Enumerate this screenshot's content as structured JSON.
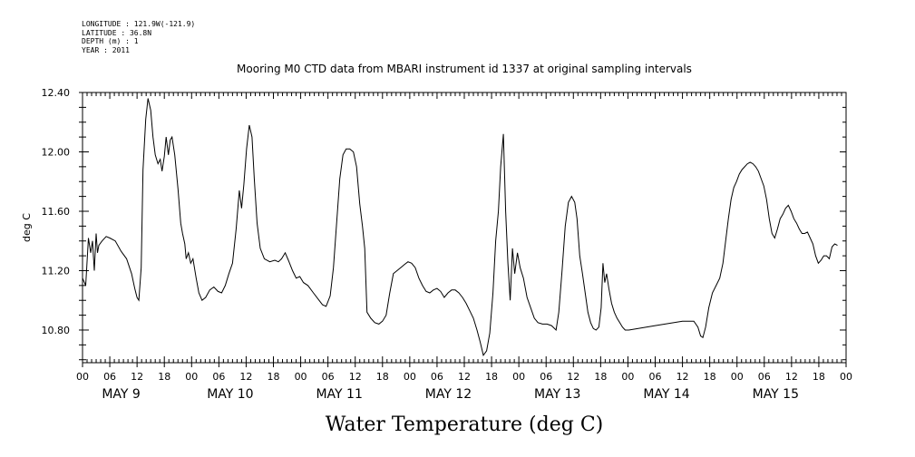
{
  "header": {
    "lines": [
      "LONGITUDE : 121.9W(-121.9)",
      "LATITUDE : 36.8N",
      "DEPTH (m) : 1",
      "YEAR : 2011"
    ]
  },
  "chart_data": {
    "type": "line",
    "title": "Mooring M0 CTD data from MBARI instrument id 1337 at original sampling intervals",
    "xlabel": "Water Temperature (deg C)",
    "ylabel": "deg C",
    "ylim": [
      10.58,
      12.4
    ],
    "yticks": [
      "12.40",
      "12.00",
      "11.60",
      "11.20",
      "10.80"
    ],
    "hour_ticks": [
      "00",
      "06",
      "12",
      "18",
      "00",
      "06",
      "12",
      "18",
      "00",
      "06",
      "12",
      "18",
      "00",
      "06",
      "12",
      "18",
      "00",
      "06",
      "12",
      "18",
      "00",
      "06",
      "12",
      "18",
      "00",
      "06",
      "12",
      "18",
      "00"
    ],
    "day_labels": [
      "MAY  9",
      "MAY 10",
      "MAY 11",
      "MAY 12",
      "MAY 13",
      "MAY 14",
      "MAY 15"
    ],
    "x_unit": "hours since 2011-05-09 00:00",
    "series": [
      {
        "name": "",
        "points": [
          [
            0,
            11.15
          ],
          [
            0.7,
            11.1
          ],
          [
            1.3,
            11.42
          ],
          [
            1.8,
            11.32
          ],
          [
            2.2,
            11.4
          ],
          [
            2.6,
            11.2
          ],
          [
            3.0,
            11.45
          ],
          [
            3.3,
            11.32
          ],
          [
            3.6,
            11.37
          ],
          [
            4.3,
            11.4
          ],
          [
            5.2,
            11.43
          ],
          [
            6.0,
            11.42
          ],
          [
            7.2,
            11.4
          ],
          [
            8.5,
            11.33
          ],
          [
            9.7,
            11.28
          ],
          [
            10.8,
            11.18
          ],
          [
            11.5,
            11.08
          ],
          [
            12.0,
            11.02
          ],
          [
            12.4,
            11.0
          ],
          [
            12.9,
            11.22
          ],
          [
            13.3,
            11.88
          ],
          [
            13.9,
            12.22
          ],
          [
            14.4,
            12.36
          ],
          [
            15.0,
            12.28
          ],
          [
            15.5,
            12.1
          ],
          [
            16.0,
            11.98
          ],
          [
            16.6,
            11.92
          ],
          [
            17.1,
            11.95
          ],
          [
            17.5,
            11.87
          ],
          [
            18.0,
            11.97
          ],
          [
            18.4,
            12.1
          ],
          [
            18.9,
            11.98
          ],
          [
            19.3,
            12.08
          ],
          [
            19.7,
            12.1
          ],
          [
            20.3,
            11.98
          ],
          [
            21.0,
            11.75
          ],
          [
            21.6,
            11.52
          ],
          [
            22.0,
            11.45
          ],
          [
            22.5,
            11.38
          ],
          [
            22.8,
            11.28
          ],
          [
            23.3,
            11.32
          ],
          [
            23.8,
            11.25
          ],
          [
            24.3,
            11.28
          ],
          [
            25.0,
            11.15
          ],
          [
            25.6,
            11.05
          ],
          [
            26.3,
            11.0
          ],
          [
            27.1,
            11.02
          ],
          [
            28.0,
            11.07
          ],
          [
            28.9,
            11.09
          ],
          [
            29.8,
            11.06
          ],
          [
            30.6,
            11.05
          ],
          [
            31.4,
            11.1
          ],
          [
            32.2,
            11.18
          ],
          [
            33.0,
            11.25
          ],
          [
            33.8,
            11.48
          ],
          [
            34.5,
            11.74
          ],
          [
            35.0,
            11.62
          ],
          [
            35.5,
            11.78
          ],
          [
            36.1,
            12.02
          ],
          [
            36.7,
            12.18
          ],
          [
            37.3,
            12.1
          ],
          [
            37.8,
            11.82
          ],
          [
            38.4,
            11.52
          ],
          [
            39.1,
            11.35
          ],
          [
            40.0,
            11.28
          ],
          [
            41.2,
            11.26
          ],
          [
            42.3,
            11.27
          ],
          [
            43.1,
            11.26
          ],
          [
            43.8,
            11.28
          ],
          [
            44.6,
            11.32
          ],
          [
            45.3,
            11.27
          ],
          [
            46.2,
            11.2
          ],
          [
            47.0,
            11.15
          ],
          [
            47.8,
            11.16
          ],
          [
            48.6,
            11.12
          ],
          [
            49.6,
            11.1
          ],
          [
            50.8,
            11.05
          ],
          [
            51.8,
            11.01
          ],
          [
            52.8,
            10.97
          ],
          [
            53.6,
            10.96
          ],
          [
            54.5,
            11.03
          ],
          [
            55.2,
            11.22
          ],
          [
            55.9,
            11.52
          ],
          [
            56.6,
            11.82
          ],
          [
            57.3,
            11.98
          ],
          [
            58.0,
            12.02
          ],
          [
            58.8,
            12.02
          ],
          [
            59.6,
            12.0
          ],
          [
            60.3,
            11.9
          ],
          [
            61.0,
            11.65
          ],
          [
            61.6,
            11.5
          ],
          [
            62.1,
            11.35
          ],
          [
            62.6,
            10.92
          ],
          [
            63.4,
            10.88
          ],
          [
            64.3,
            10.85
          ],
          [
            65.2,
            10.84
          ],
          [
            66.0,
            10.86
          ],
          [
            66.8,
            10.9
          ],
          [
            67.6,
            11.05
          ],
          [
            68.4,
            11.18
          ],
          [
            69.2,
            11.2
          ],
          [
            70.0,
            11.22
          ],
          [
            70.8,
            11.24
          ],
          [
            71.6,
            11.26
          ],
          [
            72.4,
            11.25
          ],
          [
            73.2,
            11.22
          ],
          [
            74.0,
            11.15
          ],
          [
            74.8,
            11.1
          ],
          [
            75.6,
            11.06
          ],
          [
            76.4,
            11.05
          ],
          [
            77.2,
            11.07
          ],
          [
            78.0,
            11.08
          ],
          [
            78.8,
            11.06
          ],
          [
            79.6,
            11.02
          ],
          [
            80.4,
            11.05
          ],
          [
            81.2,
            11.07
          ],
          [
            82.0,
            11.07
          ],
          [
            82.8,
            11.05
          ],
          [
            83.6,
            11.02
          ],
          [
            84.4,
            10.98
          ],
          [
            85.2,
            10.93
          ],
          [
            86.0,
            10.88
          ],
          [
            86.8,
            10.8
          ],
          [
            87.5,
            10.72
          ],
          [
            88.2,
            10.63
          ],
          [
            88.9,
            10.66
          ],
          [
            89.6,
            10.78
          ],
          [
            90.3,
            11.05
          ],
          [
            90.9,
            11.4
          ],
          [
            91.5,
            11.6
          ],
          [
            92.0,
            11.9
          ],
          [
            92.6,
            12.12
          ],
          [
            93.1,
            11.6
          ],
          [
            93.6,
            11.25
          ],
          [
            94.1,
            11.0
          ],
          [
            94.6,
            11.35
          ],
          [
            95.1,
            11.18
          ],
          [
            95.7,
            11.32
          ],
          [
            96.3,
            11.22
          ],
          [
            97.0,
            11.15
          ],
          [
            97.8,
            11.02
          ],
          [
            98.6,
            10.95
          ],
          [
            99.4,
            10.88
          ],
          [
            100.2,
            10.85
          ],
          [
            101.2,
            10.84
          ],
          [
            102.2,
            10.84
          ],
          [
            103.2,
            10.83
          ],
          [
            104.2,
            10.8
          ],
          [
            104.8,
            10.92
          ],
          [
            105.5,
            11.2
          ],
          [
            106.2,
            11.5
          ],
          [
            106.9,
            11.66
          ],
          [
            107.6,
            11.7
          ],
          [
            108.3,
            11.66
          ],
          [
            108.8,
            11.55
          ],
          [
            109.4,
            11.3
          ],
          [
            110.0,
            11.18
          ],
          [
            110.6,
            11.05
          ],
          [
            111.2,
            10.92
          ],
          [
            111.8,
            10.85
          ],
          [
            112.4,
            10.81
          ],
          [
            113.0,
            10.8
          ],
          [
            113.6,
            10.82
          ],
          [
            114.1,
            10.95
          ],
          [
            114.5,
            11.25
          ],
          [
            114.9,
            11.12
          ],
          [
            115.3,
            11.18
          ],
          [
            115.8,
            11.08
          ],
          [
            116.4,
            10.98
          ],
          [
            117.0,
            10.92
          ],
          [
            117.6,
            10.88
          ],
          [
            118.2,
            10.85
          ],
          [
            118.8,
            10.82
          ],
          [
            119.4,
            10.8
          ],
          [
            120.2,
            10.8
          ],
          [
            126.0,
            10.83
          ],
          [
            132.0,
            10.86
          ],
          [
            134.5,
            10.86
          ],
          [
            135.4,
            10.82
          ],
          [
            136.0,
            10.76
          ],
          [
            136.5,
            10.75
          ],
          [
            137.1,
            10.82
          ],
          [
            137.8,
            10.95
          ],
          [
            138.6,
            11.05
          ],
          [
            139.4,
            11.1
          ],
          [
            140.2,
            11.15
          ],
          [
            140.9,
            11.25
          ],
          [
            141.5,
            11.4
          ],
          [
            142.1,
            11.55
          ],
          [
            142.7,
            11.68
          ],
          [
            143.3,
            11.76
          ],
          [
            143.9,
            11.8
          ],
          [
            144.5,
            11.85
          ],
          [
            145.1,
            11.88
          ],
          [
            145.7,
            11.9
          ],
          [
            146.3,
            11.92
          ],
          [
            146.9,
            11.93
          ],
          [
            147.5,
            11.92
          ],
          [
            148.1,
            11.9
          ],
          [
            148.7,
            11.87
          ],
          [
            149.3,
            11.82
          ],
          [
            149.9,
            11.77
          ],
          [
            150.5,
            11.68
          ],
          [
            151.1,
            11.55
          ],
          [
            151.7,
            11.45
          ],
          [
            152.3,
            11.42
          ],
          [
            152.9,
            11.48
          ],
          [
            153.5,
            11.55
          ],
          [
            154.1,
            11.58
          ],
          [
            154.7,
            11.62
          ],
          [
            155.3,
            11.64
          ],
          [
            155.9,
            11.6
          ],
          [
            156.5,
            11.55
          ],
          [
            157.1,
            11.52
          ],
          [
            157.7,
            11.48
          ],
          [
            158.3,
            11.45
          ],
          [
            158.9,
            11.45
          ],
          [
            159.5,
            11.46
          ],
          [
            160.1,
            11.42
          ],
          [
            160.7,
            11.38
          ],
          [
            161.3,
            11.3
          ],
          [
            161.9,
            11.25
          ],
          [
            162.5,
            11.27
          ],
          [
            163.1,
            11.3
          ],
          [
            163.7,
            11.3
          ],
          [
            164.3,
            11.28
          ],
          [
            164.9,
            11.36
          ],
          [
            165.5,
            11.38
          ],
          [
            166.1,
            11.37
          ]
        ]
      }
    ]
  }
}
